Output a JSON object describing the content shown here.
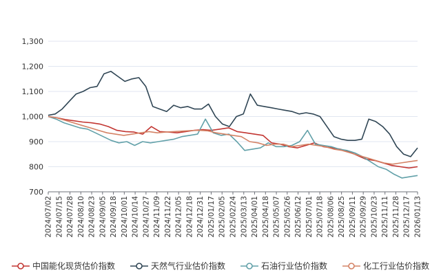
{
  "chart_data": {
    "type": "line",
    "title": "",
    "xlabel": "",
    "ylabel": "",
    "ylim": [
      700,
      1300
    ],
    "yticks": [
      700,
      800,
      900,
      1000,
      1100,
      1200,
      1300
    ],
    "ytick_labels": [
      "700",
      "800",
      "900",
      "1,000",
      "1,100",
      "1,200",
      "1,300"
    ],
    "xticks": [
      "2024/07/02",
      "2024/07/15",
      "2024/07/28",
      "2024/08/10",
      "2024/08/23",
      "2024/09/05",
      "2024/09/18",
      "2024/10/01",
      "2024/10/14",
      "2024/10/27",
      "2024/11/09",
      "2024/11/22",
      "2024/12/05",
      "2024/12/18",
      "2024/12/31",
      "2025/01/17",
      "2025/02/05",
      "2025/02/24",
      "2025/03/13",
      "2025/04/01",
      "2025/04/18",
      "2025/05/07",
      "2025/05/26",
      "2025/06/12",
      "2025/07/01",
      "2025/07/18",
      "2025/08/06",
      "2025/08/25",
      "2025/09/11",
      "2025/09/29",
      "2025/10/23",
      "2025/11/11",
      "2025/11/28",
      "2025/12/17",
      "2026/01/13"
    ],
    "legend_position": "bottom",
    "series": [
      {
        "name": "中国能化现货估价指数",
        "color": "#c23531",
        "values": [
          1000,
          995,
          988,
          983,
          978,
          975,
          970,
          960,
          945,
          940,
          938,
          930,
          960,
          940,
          938,
          935,
          940,
          945,
          948,
          945,
          950,
          955,
          940,
          935,
          930,
          925,
          895,
          890,
          880,
          875,
          885,
          895,
          880,
          875,
          870,
          860,
          845,
          830,
          825,
          815,
          805,
          800,
          795,
          800
        ]
      },
      {
        "name": "天然气行业估价指数",
        "color": "#2f4554",
        "values": [
          1005,
          1010,
          1030,
          1060,
          1090,
          1100,
          1115,
          1120,
          1170,
          1180,
          1160,
          1140,
          1150,
          1155,
          1120,
          1040,
          1030,
          1020,
          1045,
          1035,
          1040,
          1030,
          1030,
          1050,
          1000,
          970,
          960,
          1000,
          1010,
          1090,
          1045,
          1040,
          1035,
          1030,
          1025,
          1020,
          1010,
          1015,
          1010,
          1000,
          960,
          920,
          910,
          905,
          905,
          910,
          990,
          980,
          960,
          930,
          880,
          850,
          840,
          875
        ]
      },
      {
        "name": "石油行业估价指数",
        "color": "#61a0a8",
        "values": [
          1000,
          990,
          975,
          965,
          955,
          950,
          935,
          920,
          905,
          895,
          900,
          885,
          900,
          895,
          900,
          905,
          910,
          920,
          925,
          930,
          990,
          935,
          925,
          930,
          900,
          865,
          870,
          875,
          895,
          880,
          880,
          885,
          900,
          945,
          890,
          885,
          880,
          870,
          865,
          855,
          840,
          820,
          800,
          790,
          770,
          755,
          760,
          765
        ]
      },
      {
        "name": "化工行业估价指数",
        "color": "#d48265",
        "values": [
          1000,
          995,
          985,
          975,
          965,
          955,
          945,
          935,
          930,
          925,
          930,
          935,
          940,
          935,
          938,
          940,
          942,
          944,
          945,
          943,
          935,
          930,
          925,
          920,
          900,
          895,
          885,
          890,
          890,
          880,
          885,
          890,
          885,
          880,
          870,
          865,
          855,
          845,
          835,
          825,
          815,
          810,
          815,
          820,
          825
        ]
      }
    ]
  }
}
